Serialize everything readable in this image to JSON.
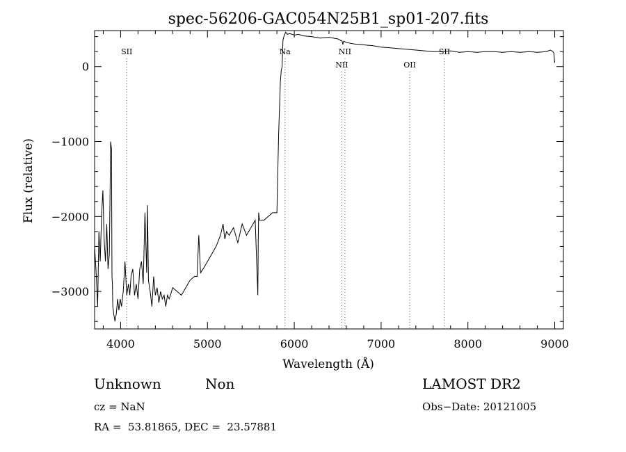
{
  "chart_data": {
    "type": "line",
    "title": "spec-56206-GAC054N25B1_sp01-207.fits",
    "xlabel": "Wavelength (Å)",
    "ylabel": "Flux (relative)",
    "xlim": [
      3700,
      9100
    ],
    "ylim": [
      -3500,
      480
    ],
    "xticks": [
      4000,
      5000,
      6000,
      7000,
      8000,
      9000
    ],
    "yticks": [
      -3000,
      -2000,
      -1000,
      0
    ],
    "xtick_labels": [
      "4000",
      "5000",
      "6000",
      "7000",
      "8000",
      "9000"
    ],
    "ytick_labels": [
      "−3000",
      "−2000",
      "−1000",
      "0"
    ],
    "grid": false,
    "series": [
      {
        "x": [
          3700,
          3720,
          3735,
          3750,
          3765,
          3780,
          3795,
          3810,
          3825,
          3840,
          3855,
          3870,
          3885,
          3895,
          3900,
          3905,
          3910,
          3920,
          3935,
          3950,
          3965,
          3980,
          3995,
          4010,
          4030,
          4050,
          4070,
          4090,
          4105,
          4120,
          4140,
          4160,
          4180,
          4200,
          4220,
          4240,
          4260,
          4280,
          4300,
          4310,
          4320,
          4340,
          4360,
          4380,
          4400,
          4420,
          4440,
          4460,
          4480,
          4500,
          4520,
          4540,
          4560,
          4600,
          4650,
          4700,
          4750,
          4800,
          4850,
          4880,
          4900,
          4920,
          4950,
          5000,
          5050,
          5100,
          5150,
          5180,
          5200,
          5220,
          5250,
          5300,
          5350,
          5400,
          5450,
          5500,
          5550,
          5580,
          5585,
          5590,
          5600,
          5650,
          5700,
          5750,
          5800,
          5820,
          5840,
          5850,
          5860,
          5870,
          5880,
          5890,
          5900,
          5920,
          5950,
          6000,
          6050,
          6100,
          6200,
          6300,
          6400,
          6500,
          6550,
          6560,
          6570,
          6600,
          6700,
          6800,
          6900,
          7000,
          7100,
          7200,
          7300,
          7400,
          7500,
          7600,
          7700,
          7800,
          7900,
          8000,
          8100,
          8200,
          8300,
          8400,
          8500,
          8600,
          8700,
          8800,
          8900,
          8950,
          8980,
          8990,
          9000
        ],
        "y": [
          -2400,
          -2800,
          -3200,
          -2200,
          -2600,
          -2000,
          -1650,
          -2300,
          -2600,
          -2100,
          -2700,
          -2500,
          -1000,
          -1100,
          -2800,
          -2900,
          -3200,
          -3300,
          -3400,
          -3300,
          -3100,
          -3250,
          -3100,
          -3200,
          -3000,
          -2600,
          -3050,
          -2900,
          -3050,
          -2800,
          -2700,
          -3050,
          -2900,
          -3100,
          -2700,
          -2600,
          -2900,
          -1950,
          -2750,
          -1850,
          -2850,
          -3000,
          -3200,
          -2800,
          -3050,
          -2950,
          -3150,
          -3000,
          -3100,
          -3050,
          -3200,
          -3050,
          -3100,
          -2950,
          -3000,
          -3050,
          -2950,
          -2850,
          -2800,
          -2800,
          -2250,
          -2750,
          -2700,
          -2600,
          -2500,
          -2400,
          -2250,
          -2100,
          -2300,
          -2200,
          -2250,
          -2150,
          -2350,
          -2100,
          -2250,
          -2150,
          -2050,
          -3050,
          -2300,
          -1950,
          -2050,
          -2050,
          -2000,
          -1950,
          -1950,
          -900,
          -200,
          -50,
          0,
          350,
          400,
          430,
          460,
          430,
          440,
          420,
          430,
          410,
          400,
          380,
          390,
          370,
          340,
          300,
          340,
          320,
          300,
          290,
          280,
          260,
          250,
          240,
          230,
          220,
          210,
          200,
          200,
          210,
          190,
          200,
          190,
          200,
          200,
          190,
          200,
          190,
          200,
          190,
          200,
          220,
          200,
          180,
          50
        ]
      }
    ],
    "lines": [
      {
        "label": "SII",
        "x": 4070,
        "pos": "top"
      },
      {
        "label": "Na",
        "x": 5893,
        "pos": "top"
      },
      {
        "label": "NII",
        "x": 6548,
        "pos": "low"
      },
      {
        "label": "NII",
        "x": 6584,
        "pos": "top"
      },
      {
        "label": "OII",
        "x": 7330,
        "pos": "low"
      },
      {
        "label": "SII",
        "x": 7730,
        "pos": "top"
      }
    ]
  },
  "info": {
    "class": "Unknown",
    "subclass": "Non",
    "survey": "LAMOST DR2",
    "cz": "cz = NaN",
    "obsdate": "Obs−Date: 20121005",
    "coords": "RA =  53.81865, DEC =  23.57881"
  }
}
